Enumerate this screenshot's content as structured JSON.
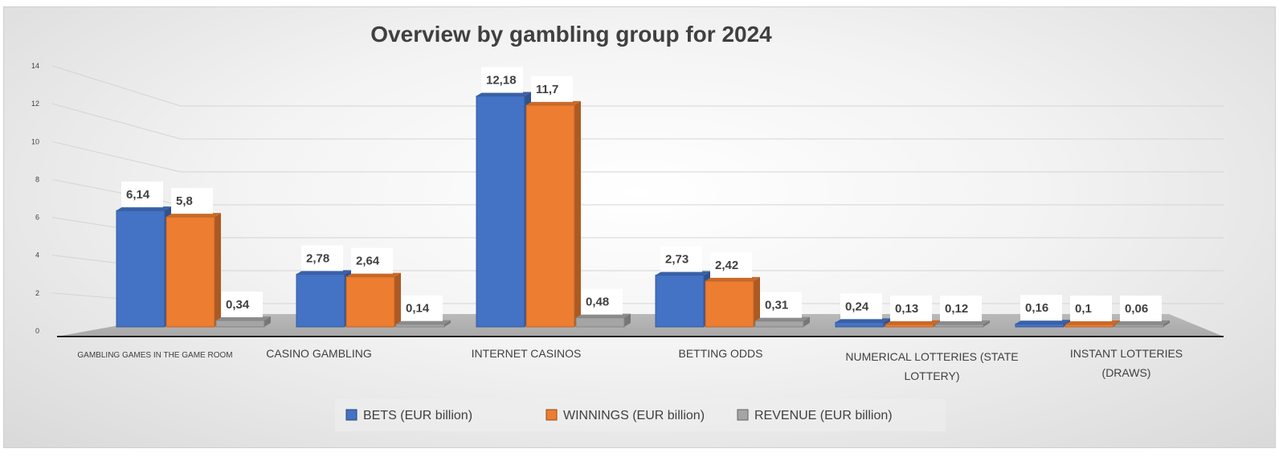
{
  "chart_data": {
    "type": "bar",
    "title": "Overview by gambling group for 2024",
    "categories": [
      "GAMBLING GAMES IN THE GAME ROOM",
      "CASINO GAMBLING",
      "INTERNET CASINOS",
      "BETTING ODDS",
      "NUMERICAL LOTTERIES (STATE LOTTERY)",
      "INSTANT LOTTERIES (DRAWS)"
    ],
    "series": [
      {
        "name": "BETS (EUR billion)",
        "color": "#4472C4",
        "values": [
          6.14,
          2.78,
          12.18,
          2.73,
          0.24,
          0.16
        ],
        "labels": [
          "6,14",
          "2,78",
          "12,18",
          "2,73",
          "0,24",
          "0,16"
        ]
      },
      {
        "name": "WINNINGS (EUR billion)",
        "color": "#ED7D31",
        "values": [
          5.8,
          2.64,
          11.7,
          2.42,
          0.13,
          0.1
        ],
        "labels": [
          "5,8",
          "2,64",
          "11,7",
          "2,42",
          "0,13",
          "0,1"
        ]
      },
      {
        "name": "REVENUE (EUR billion)",
        "color": "#A5A5A5",
        "values": [
          0.34,
          0.14,
          0.48,
          0.31,
          0.12,
          0.06
        ],
        "labels": [
          "0,34",
          "0,14",
          "0,48",
          "0,31",
          "0,12",
          "0,06"
        ]
      }
    ],
    "yticks": [
      0,
      2,
      4,
      6,
      8,
      10,
      12,
      14
    ],
    "ylim": [
      0,
      14
    ],
    "grid": true,
    "legend_position": "bottom"
  }
}
